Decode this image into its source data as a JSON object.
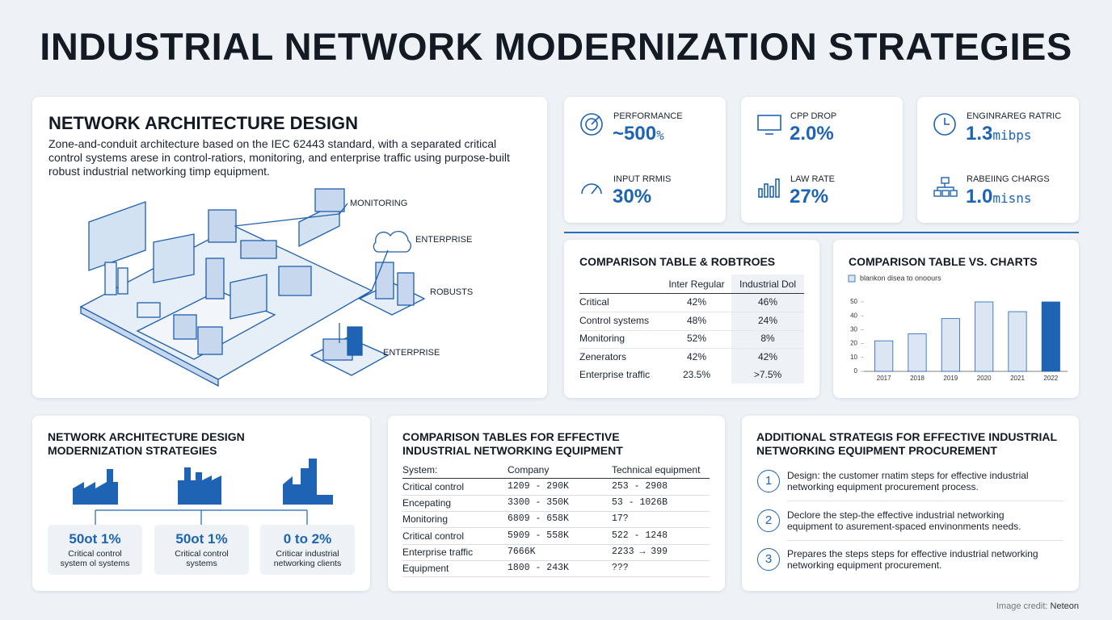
{
  "title": "INDUSTRIAL NETWORK MODERNIZATION STRATEGIES",
  "architecture": {
    "title": "NETWORK ARCHITECTURE DESIGN",
    "description": "Zone-and-conduit architecture based on the IEC 62443 standard, with a separated critical control systems arese in control-ratiors, monitoring, and enterprise traffic using purpose-built robust industrial networking timp equipment.",
    "labels": [
      "MONITORING",
      "ENTERPRISE",
      "ROBUSTS",
      "ENTERPRISE"
    ]
  },
  "metrics": [
    {
      "label": "PERFORMANCE",
      "value": "~500",
      "unit": "%"
    },
    {
      "label": "INPUT RRMIS",
      "value": "30%"
    },
    {
      "label": "CPP DROP",
      "value": "2.0%"
    },
    {
      "label": "LAW RATE",
      "value": "27%"
    },
    {
      "label": "ENGINRAREG RATRIC",
      "value": "1.3",
      "unit": "mibps"
    },
    {
      "label": "RABEIING CHARGS",
      "value": "1.0",
      "unit": "misns"
    }
  ],
  "comparison_table": {
    "title": "COMPARISON TABLE & ROBTROES",
    "columns": [
      "Inter Regular",
      "Industrial Dol"
    ],
    "rows": [
      [
        "Critical",
        "42%",
        "46%"
      ],
      [
        "Control systems",
        "48%",
        "24%"
      ],
      [
        "Monitoring",
        "52%",
        "8%"
      ],
      [
        "Zenerators",
        "42%",
        "42%"
      ],
      [
        "Enterprise traffic",
        "23.5%",
        ">7.5%"
      ]
    ]
  },
  "chart_data": {
    "type": "bar",
    "title": "COMPARISON TABLE VS. CHARTS",
    "legend": "blankon disea to onoours",
    "categories": [
      "2017",
      "2018",
      "2019",
      "2020",
      "2021",
      "2022"
    ],
    "values": [
      22,
      27,
      38,
      50,
      43,
      50
    ],
    "colors": [
      "#dce6f3",
      "#dce6f3",
      "#dce6f3",
      "#dce6f3",
      "#dce6f3",
      "#1f63b5"
    ],
    "ylim": [
      0,
      50
    ],
    "yticks": [
      0,
      10,
      20,
      30,
      40,
      50
    ]
  },
  "modernization": {
    "title": [
      "NETWORK ARCHITECTURE DESIGN",
      "MODERNIZATION STRATEGIES"
    ],
    "stats": [
      {
        "value": "50ot 1%",
        "label": [
          "Critical control",
          "system ol systems"
        ]
      },
      {
        "value": "50ot 1%",
        "label": [
          "Critical control",
          "systems"
        ]
      },
      {
        "value": "0 to 2%",
        "label": [
          "Criticar industrial",
          "networking clients"
        ]
      }
    ]
  },
  "equipment_table": {
    "title": [
      "COMPARISON TABLES FOR EFFECTIVE",
      "INDUSTRIAL NETWORKING EQUIPMENT"
    ],
    "columns": [
      "System:",
      "Company",
      "Technical equipment"
    ],
    "rows": [
      [
        "Critical control",
        "1209 - 290K",
        "253 - 2908"
      ],
      [
        "Encepating",
        "3300 - 350K",
        "53 - 1026B"
      ],
      [
        "Monitoring",
        "6809 - 658K",
        "17?"
      ],
      [
        "Critical control",
        "5909 - 558K",
        "522 - 1248"
      ],
      [
        "Enterprise traffic",
        "7666K",
        "2233 → 399"
      ],
      [
        "Equipment",
        "1800 - 243K",
        "???"
      ]
    ]
  },
  "strategies": {
    "title": [
      "ADDITIONAL STRATEGIS FOR EFFECTIVE INDUSTRIAL",
      "NETWORKING EQUIPMENT PROCUREMENT"
    ],
    "steps": [
      {
        "number": "1",
        "text": [
          "Design: the customer rnatim steps for effective industrial",
          "networking equipment procurement process."
        ]
      },
      {
        "number": "2",
        "text": [
          "Declore the step-the effective industrial networking",
          "equipment to asurement-spaced envinonments needs."
        ]
      },
      {
        "number": "3",
        "text": [
          "Prepares the steps steps for effective industrial networking",
          "networking equipment procurement."
        ]
      }
    ]
  },
  "credit": {
    "label": "Image credit:",
    "source": "Neteon"
  }
}
